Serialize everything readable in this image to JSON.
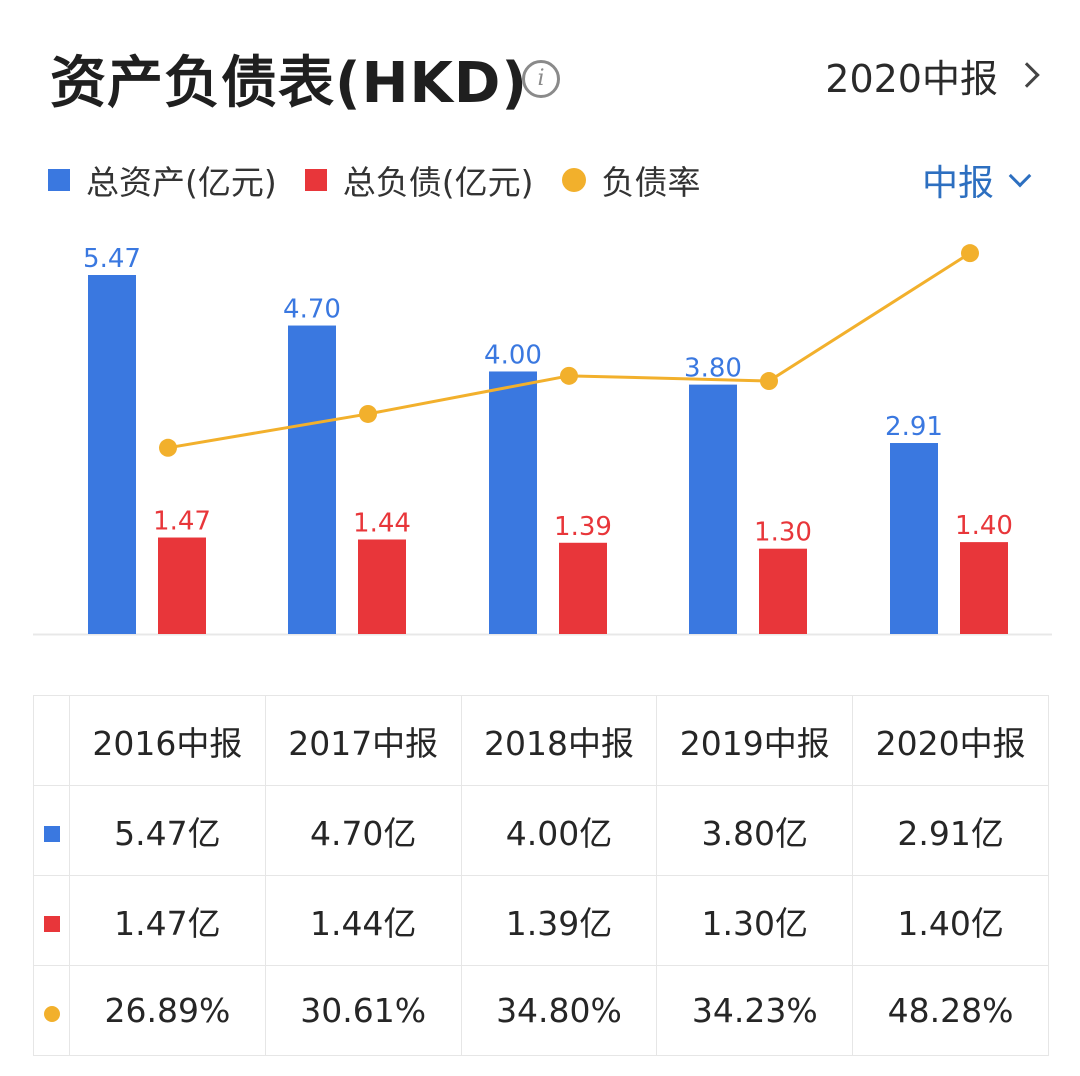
{
  "header": {
    "title": "资产负债表(HKD)",
    "info_icon": "info-icon",
    "period_label": "2020中报"
  },
  "legend": {
    "assets_label": "总资产(亿元)",
    "liabilities_label": "总负债(亿元)",
    "ratio_label": "负债率",
    "period_select_label": "中报"
  },
  "colors": {
    "assets": "#3a78e0",
    "liabilities": "#e8363a",
    "ratio": "#f2b02c"
  },
  "chart_data": {
    "type": "bar",
    "categories": [
      "2016中报",
      "2017中报",
      "2018中报",
      "2019中报",
      "2020中报"
    ],
    "series": [
      {
        "name": "总资产(亿元)",
        "type": "bar",
        "values": [
          5.47,
          4.7,
          4.0,
          3.8,
          2.91
        ],
        "value_labels": [
          "5.47",
          "4.70",
          "4.00",
          "3.80",
          "2.91"
        ]
      },
      {
        "name": "总负债(亿元)",
        "type": "bar",
        "values": [
          1.47,
          1.44,
          1.39,
          1.3,
          1.4
        ],
        "value_labels": [
          "1.47",
          "1.44",
          "1.39",
          "1.30",
          "1.40"
        ]
      },
      {
        "name": "负债率",
        "type": "line",
        "values": [
          26.89,
          30.61,
          34.8,
          34.23,
          48.28
        ]
      }
    ],
    "ylim": [
      0,
      5.47
    ],
    "legend_position": "top-left",
    "grid": false
  },
  "table": {
    "headers": [
      "2016中报",
      "2017中报",
      "2018中报",
      "2019中报",
      "2020中报"
    ],
    "rows": [
      {
        "key": "assets",
        "cells": [
          "5.47亿",
          "4.70亿",
          "4.00亿",
          "3.80亿",
          "2.91亿"
        ]
      },
      {
        "key": "liabilities",
        "cells": [
          "1.47亿",
          "1.44亿",
          "1.39亿",
          "1.30亿",
          "1.40亿"
        ]
      },
      {
        "key": "ratio",
        "cells": [
          "26.89%",
          "30.61%",
          "34.80%",
          "34.23%",
          "48.28%"
        ]
      }
    ]
  }
}
